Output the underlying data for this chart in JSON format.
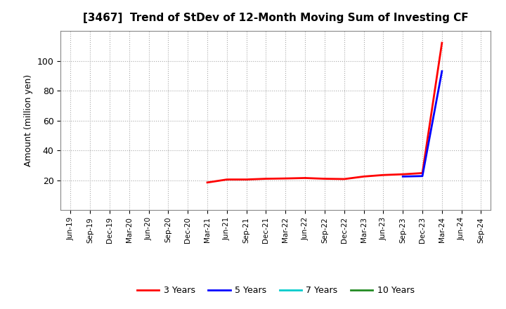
{
  "title": "[3467]  Trend of StDev of 12-Month Moving Sum of Investing CF",
  "ylabel": "Amount (million yen)",
  "background_color": "#ffffff",
  "plot_bg_color": "#ffffff",
  "grid_color": "#aaaaaa",
  "ylim": [
    0,
    120
  ],
  "yticks": [
    20,
    40,
    60,
    80,
    100
  ],
  "x_labels": [
    "Jun-19",
    "Sep-19",
    "Dec-19",
    "Mar-20",
    "Jun-20",
    "Sep-20",
    "Dec-20",
    "Mar-21",
    "Jun-21",
    "Sep-21",
    "Dec-21",
    "Mar-22",
    "Jun-22",
    "Sep-22",
    "Dec-22",
    "Mar-23",
    "Jun-23",
    "Sep-23",
    "Dec-23",
    "Mar-24",
    "Jun-24",
    "Sep-24"
  ],
  "series": {
    "3 Years": {
      "color": "#ff0000",
      "linewidth": 2.0,
      "values": [
        null,
        null,
        null,
        null,
        null,
        null,
        null,
        18.5,
        20.5,
        20.5,
        21.0,
        21.2,
        21.5,
        21.0,
        20.8,
        22.5,
        23.5,
        24.0,
        24.8,
        112.0,
        null,
        null
      ]
    },
    "5 Years": {
      "color": "#0000ff",
      "linewidth": 2.0,
      "values": [
        null,
        null,
        null,
        null,
        null,
        null,
        null,
        null,
        null,
        null,
        null,
        null,
        null,
        null,
        null,
        null,
        null,
        22.5,
        22.8,
        93.0,
        null,
        null
      ]
    },
    "7 Years": {
      "color": "#00cccc",
      "linewidth": 2.0,
      "values": [
        null,
        null,
        null,
        null,
        null,
        null,
        null,
        null,
        null,
        null,
        null,
        null,
        null,
        null,
        null,
        null,
        null,
        null,
        null,
        null,
        null,
        null
      ]
    },
    "10 Years": {
      "color": "#228B22",
      "linewidth": 2.0,
      "values": [
        null,
        null,
        null,
        null,
        null,
        null,
        null,
        null,
        null,
        null,
        null,
        null,
        null,
        null,
        null,
        null,
        null,
        null,
        null,
        null,
        null,
        null
      ]
    }
  },
  "legend_labels": [
    "3 Years",
    "5 Years",
    "7 Years",
    "10 Years"
  ],
  "legend_colors": [
    "#ff0000",
    "#0000ff",
    "#00cccc",
    "#228B22"
  ]
}
